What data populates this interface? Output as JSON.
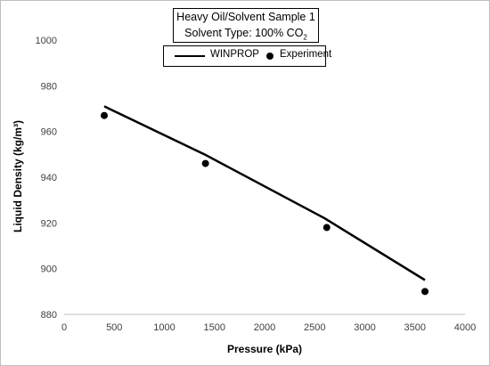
{
  "chart_data": {
    "type": "line",
    "title_line1": "Heavy Oil/Solvent Sample 1",
    "title_line2_prefix": "Solvent Type: 100% CO",
    "title_line2_subscript": "2",
    "xlabel": "Pressure (kPa)",
    "ylabel": "Liquid Density (kg/m³)",
    "xlim": [
      0,
      4000
    ],
    "ylim": [
      880,
      1000
    ],
    "x_ticks": [
      0,
      500,
      1000,
      1500,
      2000,
      2500,
      3000,
      3500,
      4000
    ],
    "y_ticks": [
      880,
      900,
      920,
      940,
      960,
      980,
      1000
    ],
    "grid": false,
    "legend_position": "top-center",
    "series": [
      {
        "name": "WINPROP",
        "kind": "line",
        "color": "#000000",
        "x": [
          400,
          1400,
          2600,
          3600
        ],
        "y": [
          971,
          950,
          922,
          895
        ]
      },
      {
        "name": "Experiment",
        "kind": "scatter",
        "color": "#000000",
        "x": [
          400,
          1410,
          2620,
          3600
        ],
        "y": [
          967,
          946,
          918,
          890
        ]
      }
    ]
  }
}
